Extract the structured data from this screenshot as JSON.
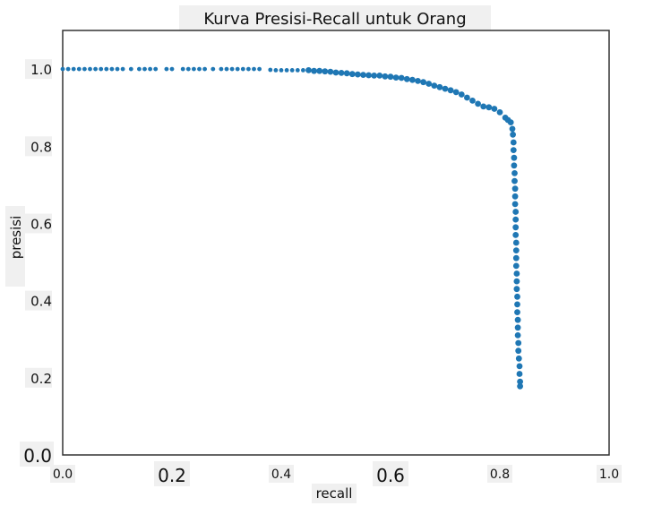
{
  "chart_data": {
    "type": "scatter",
    "title": "Kurva Presisi-Recall untuk Orang",
    "xlabel": "recall",
    "ylabel": "presisi",
    "xlim": [
      0.0,
      1.0
    ],
    "ylim": [
      0.0,
      1.1
    ],
    "grid": false,
    "xticks": [
      "0.0",
      "0.2",
      "0.4",
      "0.6",
      "0.8",
      "1.0"
    ],
    "yticks": [
      "0.0",
      "0.2",
      "0.4",
      "0.6",
      "0.8",
      "1.0"
    ],
    "xtick_values": [
      0.0,
      0.2,
      0.4,
      0.6,
      0.8,
      1.0
    ],
    "ytick_values": [
      0.0,
      0.2,
      0.4,
      0.6,
      0.8,
      1.0
    ],
    "point_color": "#1f77b4",
    "points": [
      [
        0.0,
        1.0
      ],
      [
        0.01,
        1.0
      ],
      [
        0.02,
        1.0
      ],
      [
        0.03,
        1.0
      ],
      [
        0.04,
        1.0
      ],
      [
        0.05,
        1.0
      ],
      [
        0.06,
        1.0
      ],
      [
        0.07,
        1.0
      ],
      [
        0.08,
        1.0
      ],
      [
        0.09,
        1.0
      ],
      [
        0.1,
        1.0
      ],
      [
        0.11,
        1.0
      ],
      [
        0.125,
        1.0
      ],
      [
        0.14,
        1.0
      ],
      [
        0.15,
        1.0
      ],
      [
        0.16,
        1.0
      ],
      [
        0.17,
        1.0
      ],
      [
        0.19,
        1.0
      ],
      [
        0.2,
        1.0
      ],
      [
        0.22,
        1.0
      ],
      [
        0.23,
        1.0
      ],
      [
        0.24,
        1.0
      ],
      [
        0.25,
        1.0
      ],
      [
        0.26,
        1.0
      ],
      [
        0.275,
        1.0
      ],
      [
        0.29,
        1.0
      ],
      [
        0.3,
        1.0
      ],
      [
        0.31,
        1.0
      ],
      [
        0.32,
        1.0
      ],
      [
        0.33,
        1.0
      ],
      [
        0.34,
        1.0
      ],
      [
        0.35,
        1.0
      ],
      [
        0.36,
        1.0
      ],
      [
        0.38,
        0.998
      ],
      [
        0.39,
        0.997
      ],
      [
        0.4,
        0.997
      ],
      [
        0.41,
        0.997
      ],
      [
        0.42,
        0.997
      ],
      [
        0.43,
        0.997
      ],
      [
        0.44,
        0.997
      ],
      [
        0.45,
        0.997
      ],
      [
        0.46,
        0.995
      ],
      [
        0.47,
        0.995
      ],
      [
        0.48,
        0.994
      ],
      [
        0.49,
        0.993
      ],
      [
        0.5,
        0.991
      ],
      [
        0.51,
        0.99
      ],
      [
        0.52,
        0.989
      ],
      [
        0.53,
        0.987
      ],
      [
        0.54,
        0.986
      ],
      [
        0.55,
        0.985
      ],
      [
        0.56,
        0.984
      ],
      [
        0.57,
        0.983
      ],
      [
        0.58,
        0.983
      ],
      [
        0.59,
        0.981
      ],
      [
        0.6,
        0.98
      ],
      [
        0.61,
        0.978
      ],
      [
        0.62,
        0.977
      ],
      [
        0.63,
        0.974
      ],
      [
        0.64,
        0.972
      ],
      [
        0.65,
        0.969
      ],
      [
        0.66,
        0.966
      ],
      [
        0.67,
        0.962
      ],
      [
        0.68,
        0.957
      ],
      [
        0.69,
        0.953
      ],
      [
        0.7,
        0.949
      ],
      [
        0.71,
        0.945
      ],
      [
        0.72,
        0.94
      ],
      [
        0.73,
        0.934
      ],
      [
        0.74,
        0.926
      ],
      [
        0.75,
        0.918
      ],
      [
        0.76,
        0.91
      ],
      [
        0.77,
        0.903
      ],
      [
        0.78,
        0.901
      ],
      [
        0.79,
        0.897
      ],
      [
        0.8,
        0.888
      ],
      [
        0.81,
        0.874
      ],
      [
        0.815,
        0.868
      ],
      [
        0.82,
        0.862
      ],
      [
        0.823,
        0.845
      ],
      [
        0.824,
        0.83
      ],
      [
        0.825,
        0.81
      ],
      [
        0.825,
        0.79
      ],
      [
        0.826,
        0.77
      ],
      [
        0.826,
        0.75
      ],
      [
        0.827,
        0.73
      ],
      [
        0.827,
        0.71
      ],
      [
        0.828,
        0.69
      ],
      [
        0.828,
        0.67
      ],
      [
        0.828,
        0.65
      ],
      [
        0.829,
        0.63
      ],
      [
        0.829,
        0.61
      ],
      [
        0.829,
        0.59
      ],
      [
        0.829,
        0.57
      ],
      [
        0.83,
        0.55
      ],
      [
        0.83,
        0.53
      ],
      [
        0.83,
        0.51
      ],
      [
        0.83,
        0.49
      ],
      [
        0.831,
        0.47
      ],
      [
        0.831,
        0.45
      ],
      [
        0.831,
        0.43
      ],
      [
        0.832,
        0.41
      ],
      [
        0.832,
        0.39
      ],
      [
        0.832,
        0.37
      ],
      [
        0.833,
        0.35
      ],
      [
        0.833,
        0.33
      ],
      [
        0.833,
        0.31
      ],
      [
        0.834,
        0.29
      ],
      [
        0.834,
        0.27
      ],
      [
        0.835,
        0.25
      ],
      [
        0.836,
        0.23
      ],
      [
        0.836,
        0.21
      ],
      [
        0.837,
        0.19
      ],
      [
        0.837,
        0.178
      ]
    ]
  }
}
